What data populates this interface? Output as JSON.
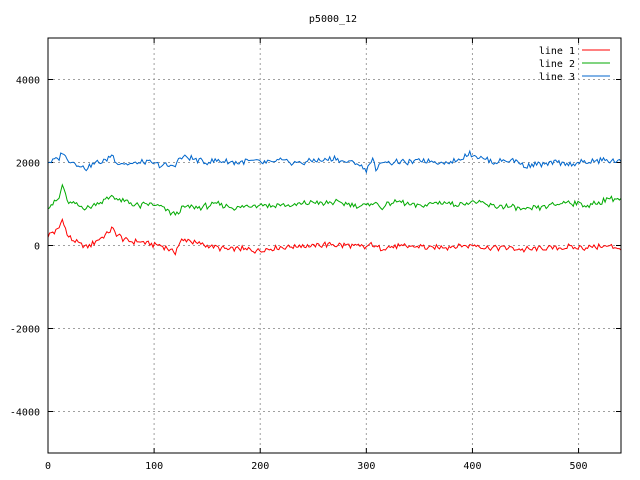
{
  "chart_data": {
    "type": "line",
    "title": "p5000_12",
    "xlabel": "",
    "ylabel": "",
    "xlim": [
      0,
      540
    ],
    "ylim": [
      -5000,
      5000
    ],
    "xticks": [
      0,
      100,
      200,
      300,
      400,
      500
    ],
    "yticks": [
      -4000,
      -2000,
      0,
      2000,
      4000
    ],
    "grid": true,
    "legend_position": "top-right",
    "x": [
      0,
      10,
      14,
      18,
      25,
      35,
      45,
      55,
      60,
      65,
      75,
      85,
      95,
      105,
      115,
      120,
      125,
      130,
      140,
      150,
      160,
      170,
      180,
      190,
      200,
      210,
      220,
      230,
      240,
      250,
      260,
      270,
      280,
      290,
      300,
      305,
      310,
      315,
      320,
      330,
      340,
      350,
      360,
      370,
      380,
      390,
      395,
      400,
      410,
      420,
      430,
      440,
      450,
      460,
      470,
      480,
      490,
      500,
      510,
      520,
      530,
      540
    ],
    "series": [
      {
        "name": "line 1",
        "color": "#ff0000",
        "values": [
          250,
          380,
          680,
          250,
          100,
          -50,
          100,
          250,
          400,
          250,
          100,
          100,
          50,
          0,
          -100,
          -150,
          100,
          150,
          50,
          0,
          -50,
          -100,
          -80,
          -100,
          -120,
          -60,
          -40,
          -20,
          0,
          -20,
          20,
          10,
          0,
          -20,
          -50,
          50,
          -60,
          -80,
          -40,
          -20,
          -30,
          -20,
          -60,
          -40,
          -30,
          0,
          -20,
          30,
          -40,
          -60,
          -50,
          -70,
          -100,
          -80,
          -60,
          -50,
          -40,
          -60,
          -40,
          -20,
          -30,
          -60
        ]
      },
      {
        "name": "line 2",
        "color": "#00aa00",
        "values": [
          950,
          1100,
          1480,
          1050,
          1000,
          900,
          1000,
          1100,
          1200,
          1100,
          1050,
          950,
          1000,
          950,
          800,
          750,
          850,
          950,
          900,
          950,
          1000,
          950,
          900,
          950,
          1000,
          950,
          980,
          950,
          1000,
          1050,
          1000,
          1050,
          1000,
          980,
          950,
          1050,
          1000,
          900,
          1000,
          1050,
          1000,
          950,
          1000,
          1050,
          1000,
          1000,
          1020,
          1050,
          1000,
          950,
          950,
          900,
          850,
          900,
          950,
          1000,
          1050,
          1000,
          950,
          1050,
          1150,
          1100
        ]
      },
      {
        "name": "line 3",
        "color": "#0066cc",
        "values": [
          2000,
          2100,
          2280,
          2050,
          2000,
          1850,
          2000,
          2050,
          2200,
          2000,
          1950,
          2000,
          2000,
          1950,
          1900,
          1950,
          2100,
          2150,
          2050,
          2000,
          2050,
          2000,
          2000,
          2050,
          2000,
          2000,
          2050,
          2000,
          2000,
          2050,
          2050,
          2100,
          2000,
          2000,
          1800,
          2100,
          1800,
          2050,
          2000,
          2000,
          2000,
          2050,
          2050,
          2000,
          2000,
          2100,
          2200,
          2200,
          2100,
          2000,
          2050,
          2050,
          1900,
          1950,
          1950,
          2000,
          1950,
          2000,
          2000,
          2050,
          2050,
          2000
        ]
      }
    ]
  }
}
